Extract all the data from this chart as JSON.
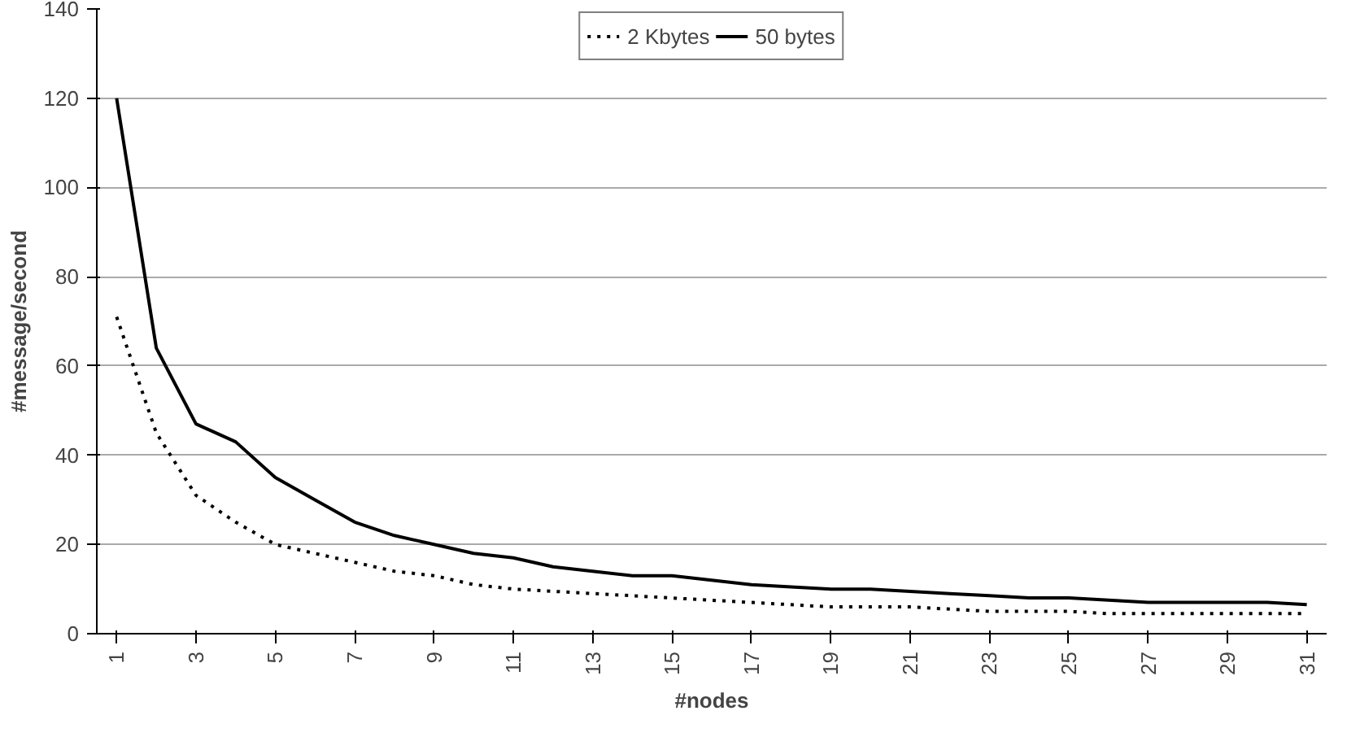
{
  "chart_data": {
    "type": "line",
    "xlabel": "#nodes",
    "ylabel": "#message/second",
    "categories": [
      "1",
      null,
      "3",
      null,
      "5",
      null,
      "7",
      null,
      "9",
      null,
      "11",
      null,
      "13",
      null,
      "15",
      null,
      "17",
      null,
      "19",
      null,
      "21",
      null,
      "23",
      null,
      "25",
      null,
      "27",
      null,
      "29",
      null,
      "31"
    ],
    "series": [
      {
        "name": "2 Kbytes",
        "color": "#000000",
        "line_style": "dotted",
        "values": [
          71,
          45,
          31,
          25,
          20,
          18,
          16,
          14,
          13,
          11,
          10,
          9.5,
          9,
          8.5,
          8,
          7.5,
          7,
          6.5,
          6,
          6,
          6,
          5.5,
          5,
          5,
          5,
          4.5,
          4.5,
          4.5,
          4.5,
          4.5,
          4.5
        ]
      },
      {
        "name": "50 bytes",
        "color": "#000000",
        "line_style": "solid",
        "values": [
          120,
          64,
          47,
          43,
          35,
          30,
          25,
          22,
          20,
          18,
          17,
          15,
          14,
          13,
          13,
          12,
          11,
          10.5,
          10,
          10,
          9.5,
          9,
          8.5,
          8,
          8,
          7.5,
          7,
          7,
          7,
          7,
          6.5
        ]
      }
    ],
    "ylim": [
      0,
      140
    ],
    "yticks": [
      0,
      20,
      40,
      60,
      80,
      100,
      120,
      140
    ],
    "grid": "y",
    "legend": "top",
    "marker": "none"
  }
}
